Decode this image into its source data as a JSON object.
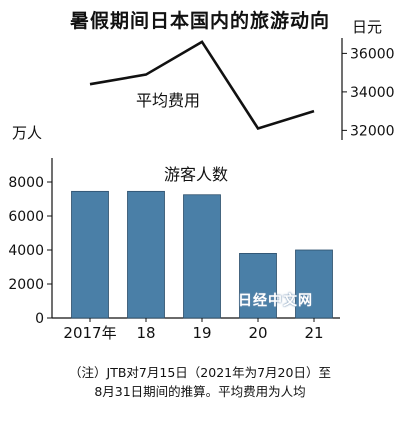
{
  "title": "暑假期间日本国内的旅游动向",
  "watermark": "日经中文网",
  "chart_data": [
    {
      "type": "line",
      "name": "平均费用",
      "unit": "日元",
      "categories": [
        "2017年",
        "18",
        "19",
        "20",
        "21"
      ],
      "values": [
        34400,
        34900,
        36600,
        32100,
        33000
      ],
      "ylim": [
        31500,
        36800
      ],
      "yticks": [
        "32000",
        "34000",
        "36000"
      ],
      "color": "#111111"
    },
    {
      "type": "bar",
      "name": "游客人数",
      "unit": "万人",
      "categories": [
        "2017年",
        "18",
        "19",
        "20",
        "21"
      ],
      "values": [
        7450,
        7450,
        7250,
        3800,
        4000
      ],
      "ylim": [
        0,
        9000
      ],
      "yticks": [
        "0",
        "2000",
        "4000",
        "6000",
        "8000"
      ],
      "bar_color": "#4a7fa7"
    }
  ],
  "note": {
    "line1": "（注）JTB对7月15日（2021年为7月20日）至",
    "line2": "8月31日期间的推算。平均费用为人均"
  }
}
